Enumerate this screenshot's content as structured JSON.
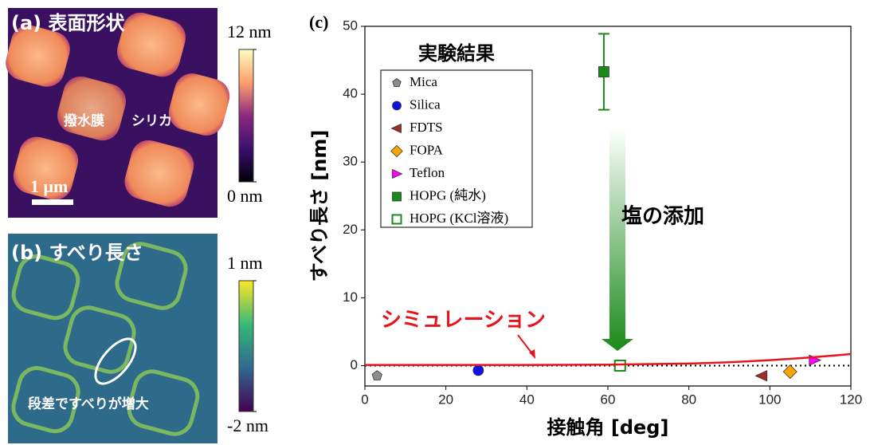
{
  "image_panels": [
    {
      "label": "(a) 表面形状",
      "annotations": [
        "撥水膜",
        "シリカ"
      ],
      "scale_bar": "1 μm",
      "colorbar": {
        "lim": [
          0,
          12
        ],
        "ticks": [
          {
            "value": 12,
            "label": "12 nm"
          },
          {
            "value": 0,
            "label": "0 nm"
          }
        ]
      }
    },
    {
      "label": "(b) すべり長さ",
      "annotations": [
        "段差ですべりが増大"
      ],
      "colorbar": {
        "lim": [
          -2,
          1
        ],
        "ticks": [
          {
            "value": 1,
            "label": "1 nm"
          },
          {
            "value": -2,
            "label": "-2 nm"
          }
        ]
      }
    }
  ],
  "chart_data": {
    "type": "scatter",
    "panel_label": "(c)",
    "xlabel": "接触角 [deg]",
    "ylabel": "すべり長さ [nm]",
    "xlim": [
      0,
      120
    ],
    "xticks": [
      0,
      20,
      40,
      60,
      80,
      100,
      120
    ],
    "ylim": [
      -3,
      50
    ],
    "yticks": [
      0,
      10,
      20,
      30,
      40,
      50
    ],
    "legend_title": "実験結果",
    "legend": "upper left",
    "reference_line": 0,
    "annotation": "塩の添加",
    "series": [
      {
        "name": "Mica",
        "color": "#8c8c8c",
        "marker": "pentagon",
        "x": [
          3
        ],
        "values": [
          -1.5
        ]
      },
      {
        "name": "Silica",
        "color": "#1010e0",
        "marker": "circle",
        "x": [
          28
        ],
        "values": [
          -0.7
        ]
      },
      {
        "name": "FDTS",
        "color": "#a52a2a",
        "marker": "triangle-left",
        "x": [
          98
        ],
        "values": [
          -1.5
        ]
      },
      {
        "name": "FOPA",
        "color": "#ffa500",
        "marker": "diamond",
        "x": [
          105
        ],
        "values": [
          -0.9
        ]
      },
      {
        "name": "Teflon",
        "color": "#ff00ff",
        "marker": "triangle-right",
        "x": [
          111
        ],
        "values": [
          0.8
        ]
      },
      {
        "name": "HOPG (純水)",
        "color": "#1a8a1a",
        "marker": "square",
        "x": [
          59
        ],
        "values": [
          43.3
        ],
        "errors": [
          5.6
        ]
      },
      {
        "name": "HOPG (KCl溶液)",
        "color": "#1a8a1a",
        "marker": "square-open",
        "x": [
          63
        ],
        "values": [
          0
        ]
      },
      {
        "name": "シミュレーション",
        "color": "#e8141c",
        "marker": "line",
        "x": [
          0,
          20,
          40,
          60,
          80,
          90,
          100,
          110,
          120
        ],
        "values": [
          0.1,
          0.1,
          0.1,
          0.15,
          0.3,
          0.5,
          0.8,
          1.2,
          1.7
        ]
      }
    ]
  }
}
